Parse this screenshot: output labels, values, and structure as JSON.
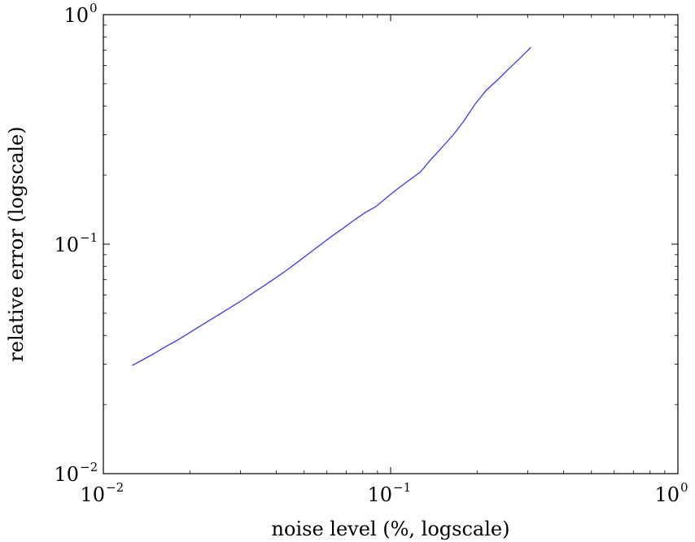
{
  "chart_data": {
    "type": "line",
    "title": "",
    "xlabel": "noise level (%, logscale)",
    "ylabel": "relative error (logscale)",
    "xscale": "log",
    "yscale": "log",
    "xlim": [
      0.01,
      1
    ],
    "ylim": [
      0.01,
      1
    ],
    "grid": false,
    "legend": "none",
    "line_color": "#3a3af0",
    "x_ticks": [
      {
        "base": "10",
        "exp": "−2",
        "value": 0.01
      },
      {
        "base": "10",
        "exp": "−1",
        "value": 0.1
      },
      {
        "base": "10",
        "exp": "0",
        "value": 1
      }
    ],
    "y_ticks": [
      {
        "base": "10",
        "exp": "−2",
        "value": 0.01
      },
      {
        "base": "10",
        "exp": "−1",
        "value": 0.1
      },
      {
        "base": "10",
        "exp": "0",
        "value": 1
      }
    ],
    "series": [
      {
        "x": [
          0.0126,
          0.0138,
          0.0151,
          0.0165,
          0.018,
          0.0197,
          0.0215,
          0.0235,
          0.0257,
          0.0281,
          0.0307,
          0.0335,
          0.0366,
          0.04,
          0.0437,
          0.0478,
          0.0522,
          0.0571,
          0.0624,
          0.0682,
          0.0745,
          0.0814,
          0.0889,
          0.0972,
          0.1062,
          0.116,
          0.1268,
          0.1385,
          0.1514,
          0.1654,
          0.1807,
          0.1975,
          0.2158,
          0.2358,
          0.2577,
          0.2816,
          0.3077
        ],
        "y": [
          0.0296,
          0.0315,
          0.0335,
          0.0358,
          0.038,
          0.0407,
          0.0436,
          0.0467,
          0.05,
          0.0536,
          0.0574,
          0.0617,
          0.0664,
          0.0716,
          0.0774,
          0.0841,
          0.0915,
          0.0996,
          0.1083,
          0.1171,
          0.1271,
          0.1372,
          0.146,
          0.16,
          0.175,
          0.19,
          0.206,
          0.235,
          0.265,
          0.3,
          0.347,
          0.41,
          0.47,
          0.52,
          0.58,
          0.645,
          0.72
        ]
      }
    ]
  }
}
